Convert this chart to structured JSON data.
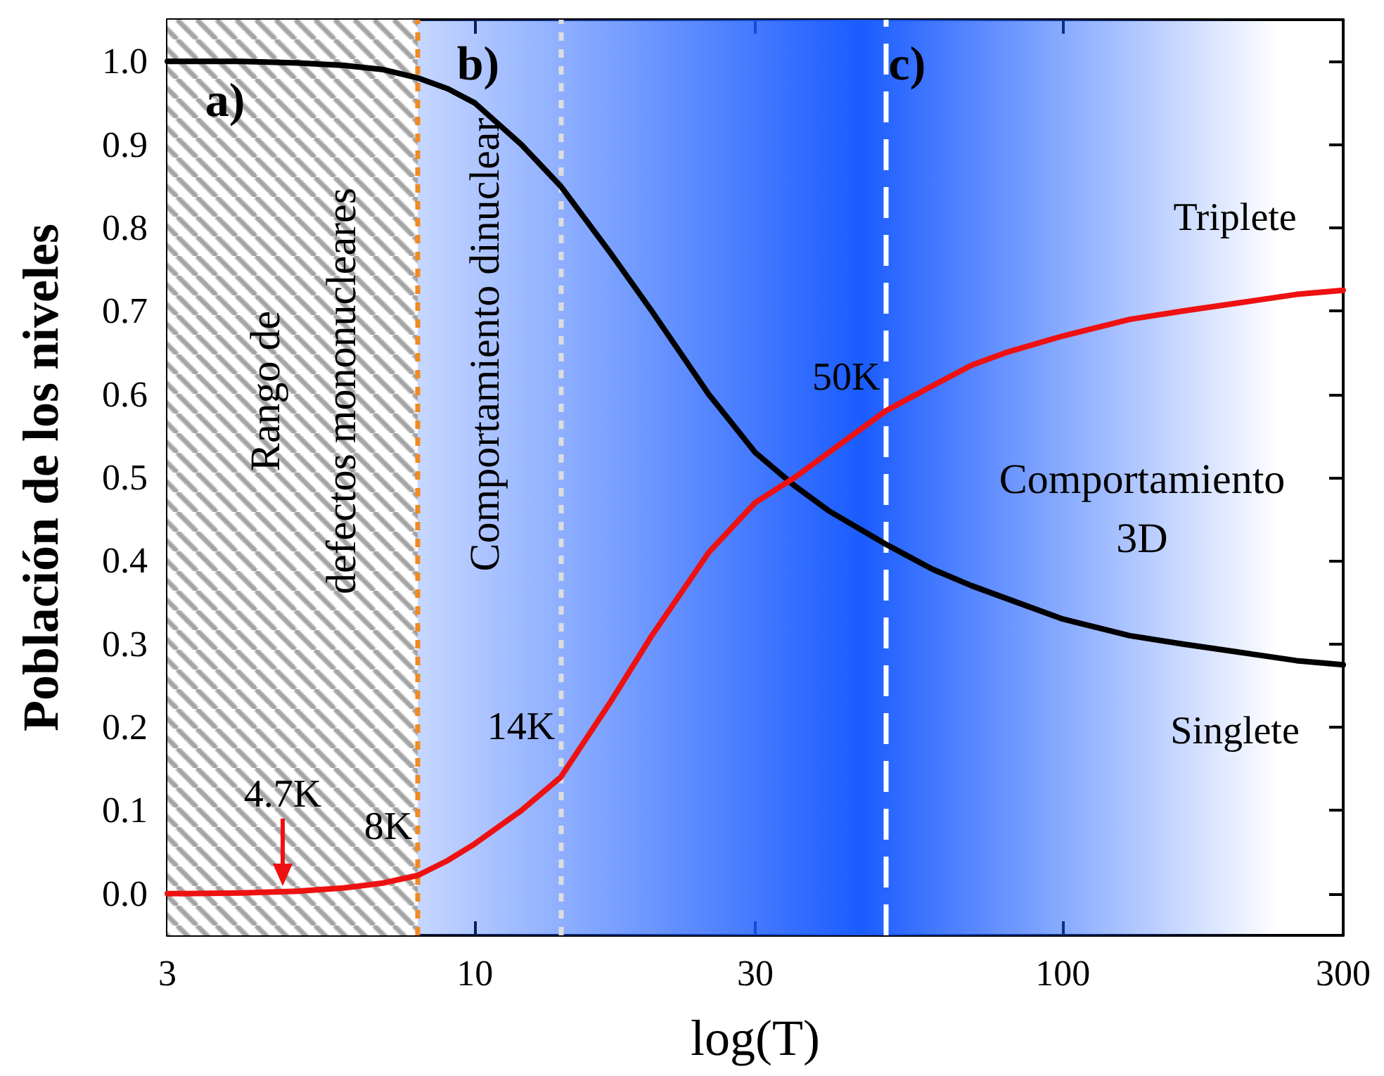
{
  "chart_data": {
    "type": "line",
    "xlabel": "log(T)",
    "ylabel": "Población de los niveles",
    "x": [
      3,
      4,
      5,
      6,
      7,
      8,
      9,
      10,
      12,
      14,
      17,
      20,
      25,
      30,
      35,
      40,
      50,
      60,
      70,
      80,
      100,
      130,
      160,
      200,
      250,
      300
    ],
    "series": [
      {
        "color": "#000000",
        "values": [
          1.0,
          1.0,
          0.998,
          0.995,
          0.99,
          0.98,
          0.967,
          0.95,
          0.9,
          0.85,
          0.77,
          0.7,
          0.6,
          0.53,
          0.49,
          0.46,
          0.42,
          0.39,
          0.37,
          0.355,
          0.33,
          0.31,
          0.3,
          0.29,
          0.28,
          0.275
        ]
      },
      {
        "color": "#ee1111",
        "values": [
          0.0,
          0.001,
          0.003,
          0.007,
          0.013,
          0.022,
          0.04,
          0.06,
          0.1,
          0.14,
          0.23,
          0.31,
          0.41,
          0.47,
          0.5,
          0.53,
          0.58,
          0.61,
          0.635,
          0.65,
          0.67,
          0.69,
          0.7,
          0.71,
          0.72,
          0.725
        ]
      }
    ],
    "log": "x",
    "xlim": [
      3,
      300
    ],
    "xticks": [
      3,
      10,
      30,
      100,
      300
    ],
    "ylim": [
      -0.05,
      1.05
    ],
    "yticks": [
      {
        "value": 0,
        "label": "0.0"
      },
      {
        "value": 0.1,
        "label": "0.1"
      },
      {
        "value": 0.2,
        "label": "0.2"
      },
      {
        "value": 0.3,
        "label": "0.3"
      },
      {
        "value": 0.4,
        "label": "0.4"
      },
      {
        "value": 0.5,
        "label": "0.5"
      },
      {
        "value": 0.6,
        "label": "0.6"
      },
      {
        "value": 0.7,
        "label": "0.7"
      },
      {
        "value": 0.8,
        "label": "0.8"
      },
      {
        "value": 0.9,
        "label": "0.9"
      },
      {
        "value": 1,
        "label": "1.0"
      }
    ],
    "ref_lines": [
      {
        "axis": "x",
        "value": 8,
        "label": "8K",
        "color": "#f08a24",
        "line_style": "dotted"
      },
      {
        "axis": "x",
        "value": 14,
        "label": "14K",
        "color": "#dddddd",
        "line_style": "dotted"
      },
      {
        "axis": "x",
        "value": 50,
        "label": "50K",
        "color": "#ffffff",
        "line_style": "dashed"
      }
    ],
    "bands": [
      {
        "axis": "x",
        "from": 3,
        "to": 8,
        "color": "#999999"
      },
      {
        "axis": "x",
        "from": 8,
        "to": 300,
        "color": "#1a5cff"
      }
    ],
    "annotations": [
      "a)",
      "b)",
      "c)",
      "Rango de\ndefectos mononucleares",
      "Comportamiento dinuclear",
      "Comportamiento\n3D",
      "4.7K",
      "Triplete",
      "Singlete"
    ],
    "line_style": "solid",
    "marker": "none"
  }
}
